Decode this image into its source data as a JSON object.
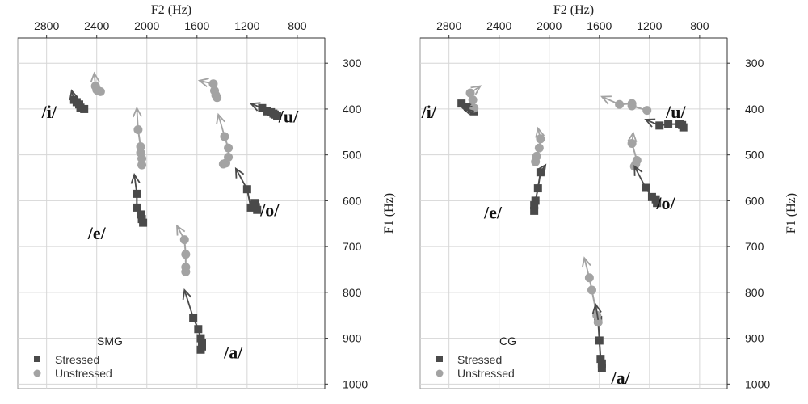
{
  "chart_data": [
    {
      "type": "scatter",
      "panel_label": "SMG",
      "xlabel": "F2 (Hz)",
      "ylabel": "F1 (Hz)",
      "x_axis": {
        "reversed": true,
        "position": "top",
        "lim": [
          3030,
          580
        ],
        "ticks": [
          2800,
          2400,
          2000,
          1600,
          1200,
          800
        ]
      },
      "y_axis": {
        "reversed": true,
        "position": "right",
        "lim": [
          1010,
          245
        ],
        "ticks": [
          300,
          400,
          500,
          600,
          700,
          800,
          900,
          1000
        ]
      },
      "grid": true,
      "legend": {
        "placement": "bottom-left",
        "entries": [
          "Stressed",
          "Unstressed"
        ]
      },
      "colors": {
        "stressed": "#4a4a4a",
        "unstressed": "#a3a3a3"
      },
      "vowel_labels": [
        {
          "text": "/i/",
          "x": 2780,
          "y": 405
        },
        {
          "text": "/e/",
          "x": 2400,
          "y": 670
        },
        {
          "text": "/u/",
          "x": 870,
          "y": 415
        },
        {
          "text": "/o/",
          "x": 1020,
          "y": 620
        },
        {
          "text": "/a/",
          "x": 1310,
          "y": 930
        }
      ],
      "series": [
        {
          "name": "Stressed",
          "vowel": "i",
          "points": [
            [
              2500,
              400
            ],
            [
              2530,
              397
            ],
            [
              2540,
              390
            ],
            [
              2560,
              385
            ],
            [
              2580,
              380
            ]
          ]
        },
        {
          "name": "Stressed",
          "vowel": "e",
          "points": [
            [
              2030,
              648
            ],
            [
              2040,
              640
            ],
            [
              2050,
              630
            ],
            [
              2080,
              615
            ],
            [
              2080,
              585
            ]
          ]
        },
        {
          "name": "Stressed",
          "vowel": "a",
          "points": [
            [
              1570,
              925
            ],
            [
              1560,
              918
            ],
            [
              1560,
              910
            ],
            [
              1570,
              900
            ],
            [
              1590,
              880
            ],
            [
              1630,
              855
            ]
          ]
        },
        {
          "name": "Stressed",
          "vowel": "o",
          "points": [
            [
              1120,
              620
            ],
            [
              1130,
              614
            ],
            [
              1150,
              610
            ],
            [
              1140,
              605
            ],
            [
              1170,
              615
            ],
            [
              1200,
              575
            ]
          ]
        },
        {
          "name": "Stressed",
          "vowel": "u",
          "points": [
            [
              960,
              415
            ],
            [
              980,
              412
            ],
            [
              990,
              410
            ],
            [
              1010,
              407
            ],
            [
              1040,
              405
            ],
            [
              1080,
              398
            ]
          ]
        },
        {
          "name": "Unstressed",
          "vowel": "i",
          "points": [
            [
              2370,
              362
            ],
            [
              2390,
              360
            ],
            [
              2400,
              358
            ],
            [
              2410,
              350
            ]
          ]
        },
        {
          "name": "Unstressed",
          "vowel": "e",
          "points": [
            [
              2040,
              522
            ],
            [
              2040,
              508
            ],
            [
              2050,
              495
            ],
            [
              2050,
              482
            ],
            [
              2070,
              445
            ]
          ]
        },
        {
          "name": "Unstressed",
          "vowel": "a",
          "points": [
            [
              1690,
              755
            ],
            [
              1690,
              745
            ],
            [
              1690,
              717
            ],
            [
              1700,
              685
            ]
          ]
        },
        {
          "name": "Unstressed",
          "vowel": "o",
          "points": [
            [
              1390,
              520
            ],
            [
              1370,
              518
            ],
            [
              1350,
              505
            ],
            [
              1350,
              485
            ],
            [
              1380,
              460
            ]
          ]
        },
        {
          "name": "Unstressed",
          "vowel": "u",
          "points": [
            [
              1440,
              375
            ],
            [
              1450,
              370
            ],
            [
              1460,
              360
            ],
            [
              1470,
              345
            ]
          ]
        }
      ],
      "arrows": [
        {
          "series": "Stressed",
          "vowel": "i",
          "from": [
            2580,
            380
          ],
          "to": [
            2600,
            360
          ]
        },
        {
          "series": "Stressed",
          "vowel": "e",
          "from": [
            2080,
            585
          ],
          "to": [
            2100,
            543
          ]
        },
        {
          "series": "Stressed",
          "vowel": "a",
          "from": [
            1630,
            855
          ],
          "to": [
            1700,
            795
          ]
        },
        {
          "series": "Stressed",
          "vowel": "o",
          "from": [
            1200,
            575
          ],
          "to": [
            1290,
            530
          ]
        },
        {
          "series": "Stressed",
          "vowel": "u",
          "from": [
            1080,
            398
          ],
          "to": [
            1170,
            388
          ]
        },
        {
          "series": "Unstressed",
          "vowel": "i",
          "from": [
            2410,
            350
          ],
          "to": [
            2420,
            322
          ]
        },
        {
          "series": "Unstressed",
          "vowel": "e",
          "from": [
            2070,
            445
          ],
          "to": [
            2080,
            398
          ]
        },
        {
          "series": "Unstressed",
          "vowel": "a",
          "from": [
            1700,
            685
          ],
          "to": [
            1760,
            655
          ]
        },
        {
          "series": "Unstressed",
          "vowel": "o",
          "from": [
            1380,
            460
          ],
          "to": [
            1430,
            412
          ]
        },
        {
          "series": "Unstressed",
          "vowel": "u",
          "from": [
            1470,
            345
          ],
          "to": [
            1580,
            338
          ]
        }
      ]
    },
    {
      "type": "scatter",
      "panel_label": "CG",
      "xlabel": "F2 (Hz)",
      "ylabel": "F1 (Hz)",
      "x_axis": {
        "reversed": true,
        "position": "top",
        "lim": [
          3030,
          580
        ],
        "ticks": [
          2800,
          2400,
          2000,
          1600,
          1200,
          800
        ]
      },
      "y_axis": {
        "reversed": true,
        "position": "right",
        "lim": [
          1010,
          245
        ],
        "ticks": [
          300,
          400,
          500,
          600,
          700,
          800,
          900,
          1000
        ]
      },
      "grid": true,
      "legend": {
        "placement": "bottom-left",
        "entries": [
          "Stressed",
          "Unstressed"
        ]
      },
      "colors": {
        "stressed": "#4a4a4a",
        "unstressed": "#a3a3a3"
      },
      "vowel_labels": [
        {
          "text": "/i/",
          "x": 2960,
          "y": 405
        },
        {
          "text": "/e/",
          "x": 2450,
          "y": 625
        },
        {
          "text": "/u/",
          "x": 990,
          "y": 405
        },
        {
          "text": "/o/",
          "x": 1070,
          "y": 605
        },
        {
          "text": "/a/",
          "x": 1430,
          "y": 985
        }
      ],
      "series": [
        {
          "name": "Stressed",
          "vowel": "i",
          "points": [
            [
              2600,
              405
            ],
            [
              2620,
              400
            ],
            [
              2650,
              395
            ],
            [
              2700,
              388
            ]
          ]
        },
        {
          "name": "Stressed",
          "vowel": "e",
          "points": [
            [
              2120,
              622
            ],
            [
              2120,
              610
            ],
            [
              2110,
              600
            ],
            [
              2090,
              573
            ],
            [
              2070,
              538
            ]
          ]
        },
        {
          "name": "Stressed",
          "vowel": "a",
          "points": [
            [
              1580,
              965
            ],
            [
              1580,
              955
            ],
            [
              1590,
              945
            ],
            [
              1600,
              905
            ],
            [
              1610,
              860
            ]
          ]
        },
        {
          "name": "Stressed",
          "vowel": "o",
          "points": [
            [
              1140,
              605
            ],
            [
              1150,
              597
            ],
            [
              1180,
              592
            ],
            [
              1230,
              572
            ]
          ]
        },
        {
          "name": "Stressed",
          "vowel": "u",
          "points": [
            [
              930,
              440
            ],
            [
              940,
              435
            ],
            [
              960,
              433
            ],
            [
              1050,
              433
            ],
            [
              1120,
              436
            ]
          ]
        },
        {
          "name": "Unstressed",
          "vowel": "i",
          "points": [
            [
              2600,
              398
            ],
            [
              2610,
              380
            ],
            [
              2630,
              365
            ]
          ]
        },
        {
          "name": "Unstressed",
          "vowel": "e",
          "points": [
            [
              2110,
              515
            ],
            [
              2100,
              503
            ],
            [
              2080,
              485
            ],
            [
              2070,
              465
            ]
          ]
        },
        {
          "name": "Unstressed",
          "vowel": "a",
          "points": [
            [
              1610,
              865
            ],
            [
              1620,
              850
            ],
            [
              1660,
              795
            ],
            [
              1680,
              768
            ]
          ]
        },
        {
          "name": "Unstressed",
          "vowel": "o",
          "points": [
            [
              1320,
              525
            ],
            [
              1310,
              520
            ],
            [
              1300,
              512
            ],
            [
              1340,
              475
            ]
          ]
        },
        {
          "name": "Unstressed",
          "vowel": "u",
          "points": [
            [
              1220,
              403
            ],
            [
              1340,
              393
            ],
            [
              1340,
              388
            ],
            [
              1440,
              390
            ]
          ]
        }
      ],
      "arrows": [
        {
          "series": "Stressed",
          "vowel": "i",
          "from": [
            2600,
            405
          ],
          "to": [
            2690,
            398
          ]
        },
        {
          "series": "Stressed",
          "vowel": "e",
          "from": [
            2070,
            538
          ],
          "to": [
            2030,
            522
          ]
        },
        {
          "series": "Stressed",
          "vowel": "a",
          "from": [
            1610,
            860
          ],
          "to": [
            1630,
            826
          ]
        },
        {
          "series": "Stressed",
          "vowel": "o",
          "from": [
            1230,
            572
          ],
          "to": [
            1320,
            525
          ]
        },
        {
          "series": "Stressed",
          "vowel": "u",
          "from": [
            1120,
            436
          ],
          "to": [
            1230,
            423
          ]
        },
        {
          "series": "Unstressed",
          "vowel": "i",
          "from": [
            2630,
            365
          ],
          "to": [
            2550,
            350
          ]
        },
        {
          "series": "Unstressed",
          "vowel": "e",
          "from": [
            2070,
            465
          ],
          "to": [
            2090,
            442
          ]
        },
        {
          "series": "Unstressed",
          "vowel": "a",
          "from": [
            1680,
            768
          ],
          "to": [
            1720,
            725
          ]
        },
        {
          "series": "Unstressed",
          "vowel": "o",
          "from": [
            1340,
            475
          ],
          "to": [
            1330,
            452
          ]
        },
        {
          "series": "Unstressed",
          "vowel": "u",
          "from": [
            1440,
            390
          ],
          "to": [
            1580,
            373
          ]
        }
      ]
    }
  ]
}
